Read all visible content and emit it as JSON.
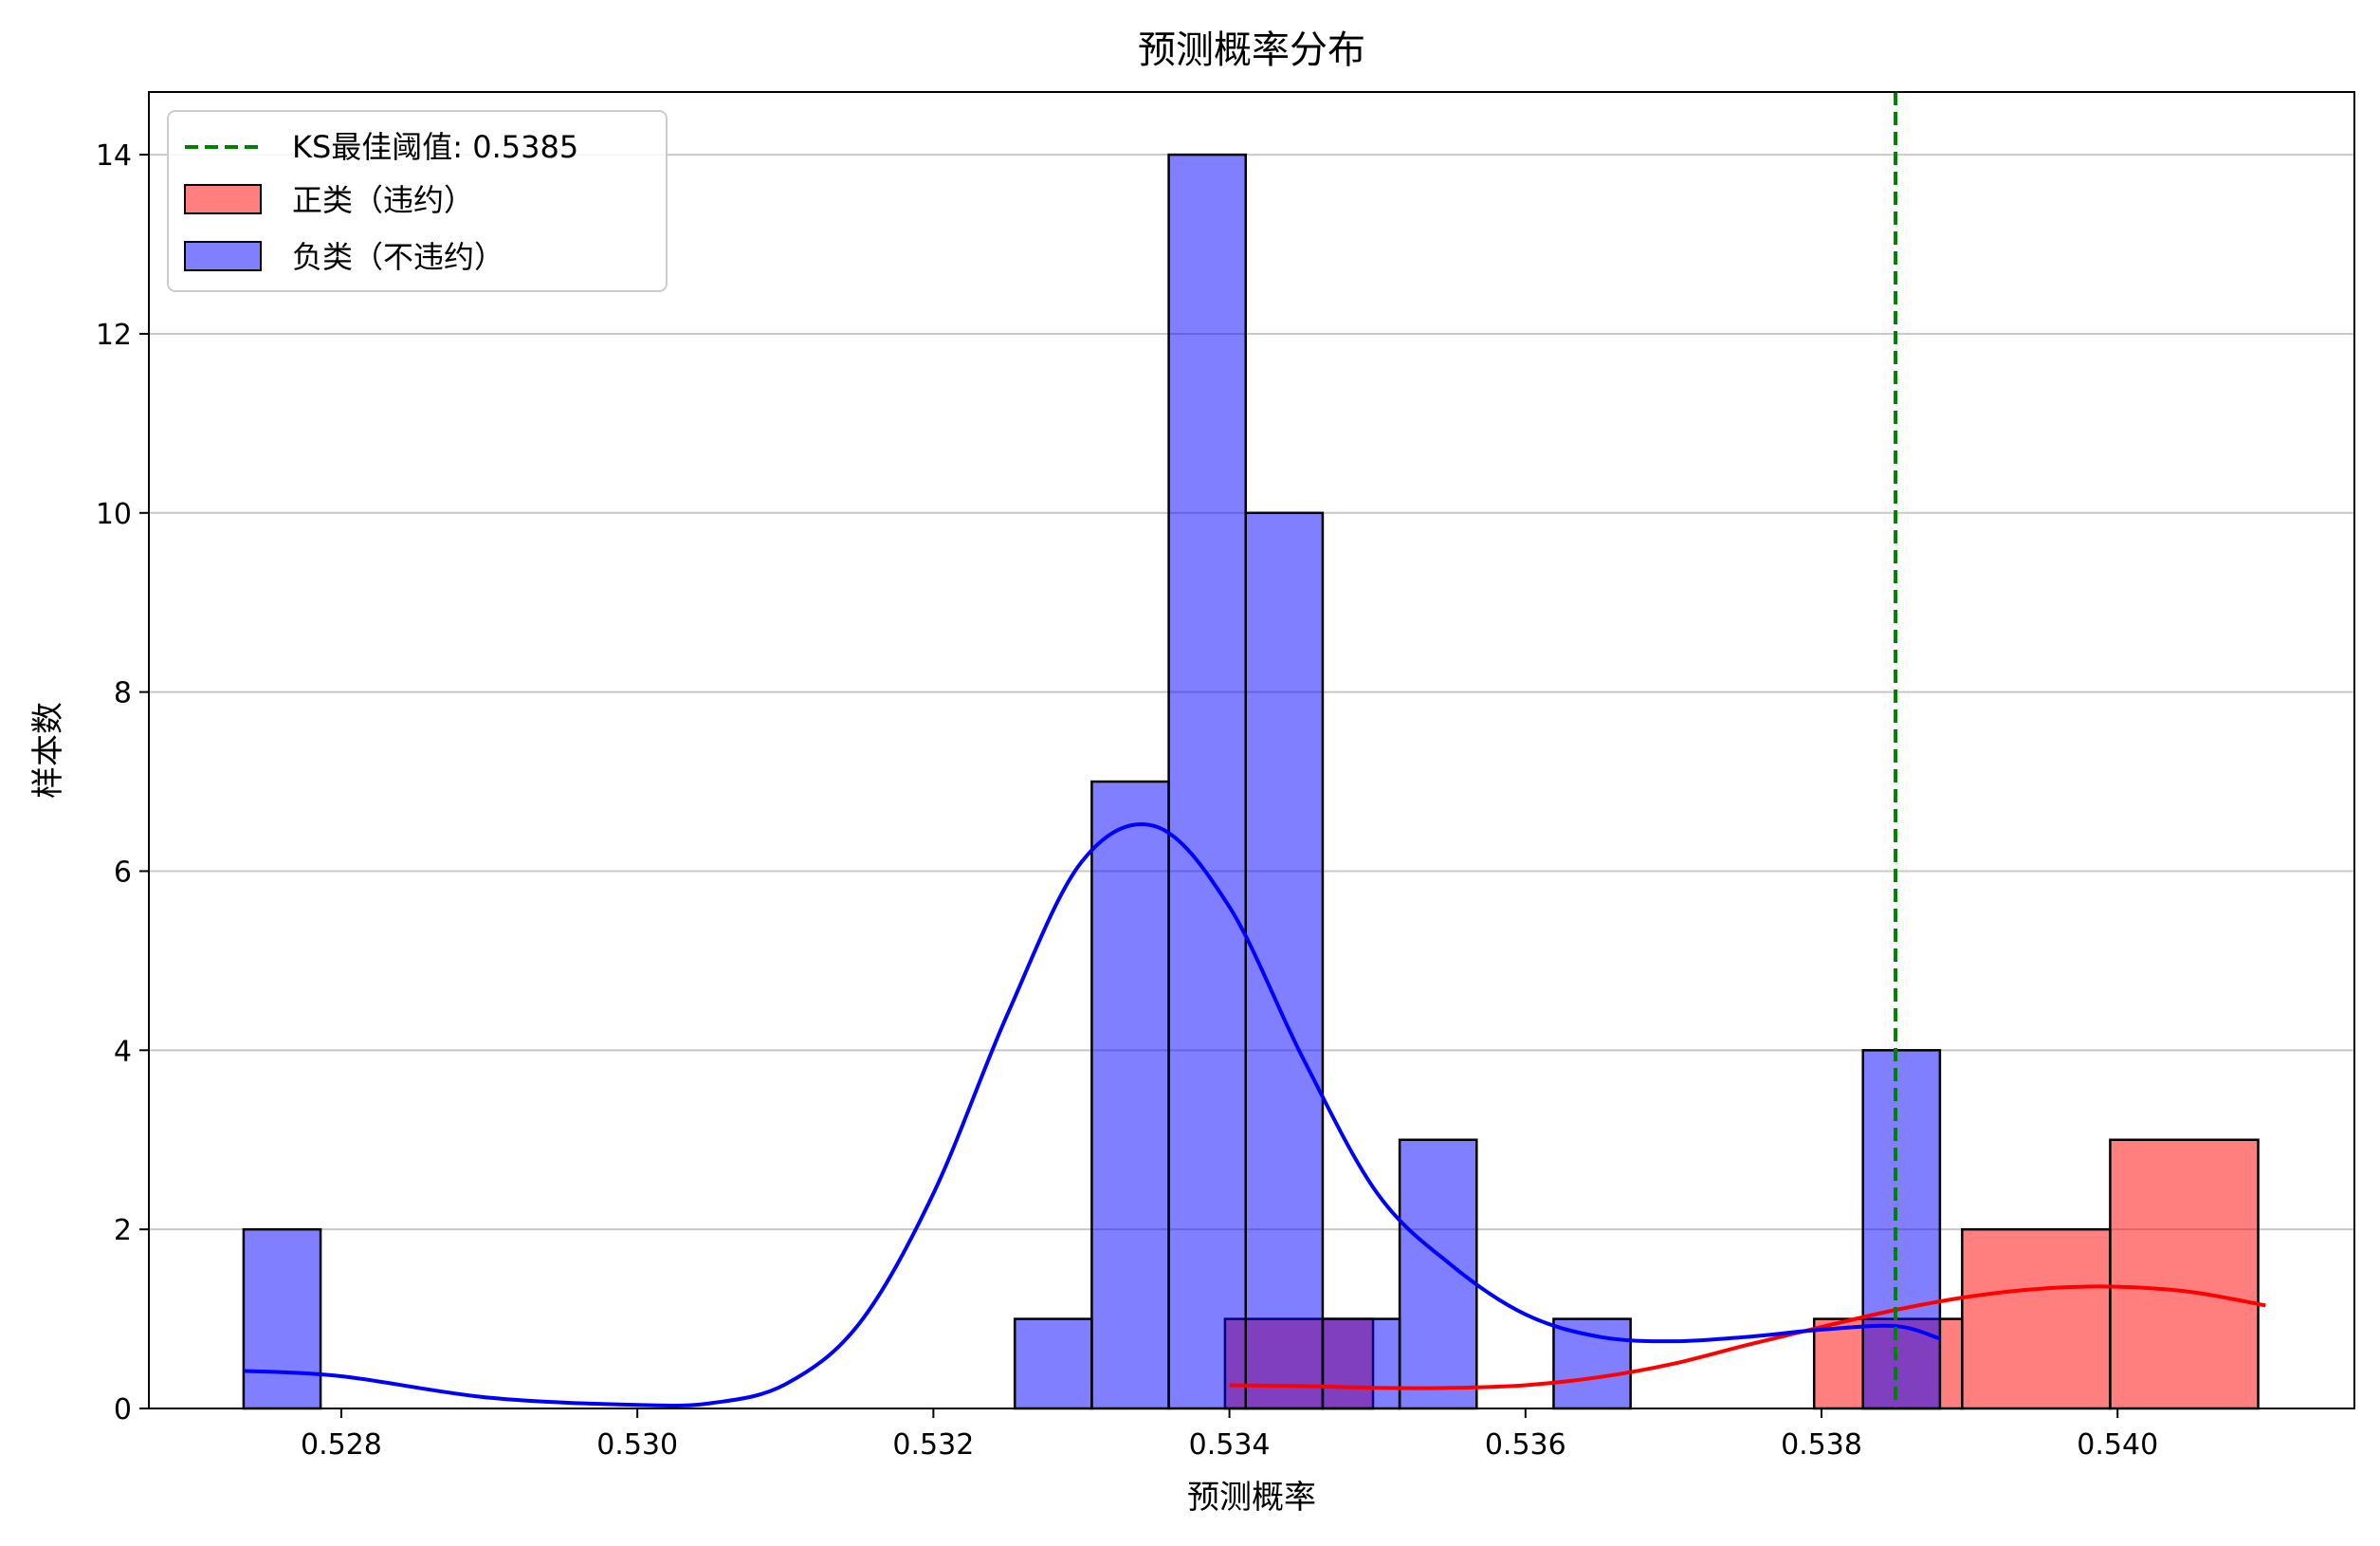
{
  "chart_data": {
    "type": "histogram",
    "title": "预测概率分布",
    "xlabel": "预测概率",
    "ylabel": "样本数",
    "xlim": [
      0.5267,
      0.5416
    ],
    "ylim": [
      0,
      14.7
    ],
    "xticks": [
      0.528,
      0.53,
      0.532,
      0.534,
      0.536,
      0.538,
      0.54
    ],
    "xtick_labels": [
      "0.528",
      "0.530",
      "0.532",
      "0.534",
      "0.536",
      "0.538",
      "0.540"
    ],
    "yticks": [
      0,
      2,
      4,
      6,
      8,
      10,
      12,
      14
    ],
    "ytick_labels": [
      "0",
      "2",
      "4",
      "6",
      "8",
      "10",
      "12",
      "14"
    ],
    "grid": "y",
    "legend_position": "top-left",
    "threshold": {
      "label": "KS最佳阈值: 0.5385",
      "value": 0.5385,
      "color": "#008000",
      "style": "dashed"
    },
    "series": [
      {
        "name": "正类（违约）",
        "color": "#ff0000",
        "bins": [
          {
            "x0": 0.53397,
            "x1": 0.53497,
            "count": 1
          },
          {
            "x0": 0.53795,
            "x1": 0.53895,
            "count": 1
          },
          {
            "x0": 0.53895,
            "x1": 0.53995,
            "count": 2
          },
          {
            "x0": 0.53995,
            "x1": 0.54095,
            "count": 3
          }
        ],
        "kde": {
          "x": [
            0.534,
            0.5345,
            0.535,
            0.5355,
            0.536,
            0.5365,
            0.537,
            0.5375,
            0.538,
            0.5385,
            0.539,
            0.5395,
            0.54,
            0.5405,
            0.541
          ],
          "y": [
            0.26,
            0.25,
            0.23,
            0.23,
            0.26,
            0.35,
            0.5,
            0.71,
            0.91,
            1.1,
            1.25,
            1.34,
            1.36,
            1.3,
            1.15
          ]
        }
      },
      {
        "name": "负类（不违约）",
        "color": "#0000ff",
        "bins": [
          {
            "x0": 0.52734,
            "x1": 0.52786,
            "count": 2
          },
          {
            "x0": 0.53255,
            "x1": 0.53307,
            "count": 1
          },
          {
            "x0": 0.53307,
            "x1": 0.53359,
            "count": 7
          },
          {
            "x0": 0.53359,
            "x1": 0.53411,
            "count": 14
          },
          {
            "x0": 0.53411,
            "x1": 0.53463,
            "count": 10
          },
          {
            "x0": 0.53463,
            "x1": 0.53515,
            "count": 1
          },
          {
            "x0": 0.53515,
            "x1": 0.53567,
            "count": 3
          },
          {
            "x0": 0.53619,
            "x1": 0.53671,
            "count": 1
          },
          {
            "x0": 0.53828,
            "x1": 0.5388,
            "count": 4
          }
        ],
        "kde": {
          "x": [
            0.52734,
            0.528,
            0.529,
            0.53,
            0.5305,
            0.531,
            0.5315,
            0.532,
            0.5325,
            0.533,
            0.5335,
            0.534,
            0.5345,
            0.535,
            0.5355,
            0.536,
            0.5365,
            0.537,
            0.5375,
            0.538,
            0.5385,
            0.5388
          ],
          "y": [
            0.42,
            0.36,
            0.12,
            0.04,
            0.06,
            0.27,
            0.95,
            2.4,
            4.4,
            6.1,
            6.5,
            5.6,
            3.9,
            2.4,
            1.6,
            1.05,
            0.8,
            0.75,
            0.8,
            0.88,
            0.92,
            0.78
          ]
        }
      }
    ]
  }
}
